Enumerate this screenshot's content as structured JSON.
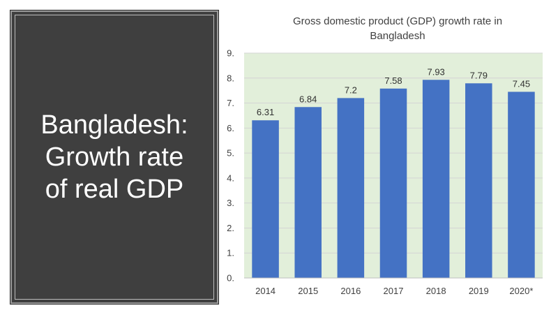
{
  "slide": {
    "heading": "Bangladesh:\nGrowth rate\nof real GDP"
  },
  "colors": {
    "panel_bg": "#3f3f3f",
    "plot_bg": "#e2efda",
    "bar": "#4472c4"
  },
  "chart_data": {
    "type": "bar",
    "title": "Gross domestic product (GDP) growth rate in\nBangladesh",
    "xlabel": "",
    "ylabel": "",
    "categories": [
      "2014",
      "2015",
      "2016",
      "2017",
      "2018",
      "2019",
      "2020*"
    ],
    "values": [
      6.31,
      6.84,
      7.2,
      7.58,
      7.93,
      7.79,
      7.45
    ],
    "data_labels": [
      "6.31",
      "6.84",
      "7.2",
      "7.58",
      "7.93",
      "7.79",
      "7.45"
    ],
    "y_ticks": [
      "0.",
      "1.",
      "2.",
      "3.",
      "4.",
      "5.",
      "6.",
      "7.",
      "8.",
      "9."
    ],
    "ylim": [
      0,
      9
    ],
    "grid": true,
    "legend": "none"
  }
}
